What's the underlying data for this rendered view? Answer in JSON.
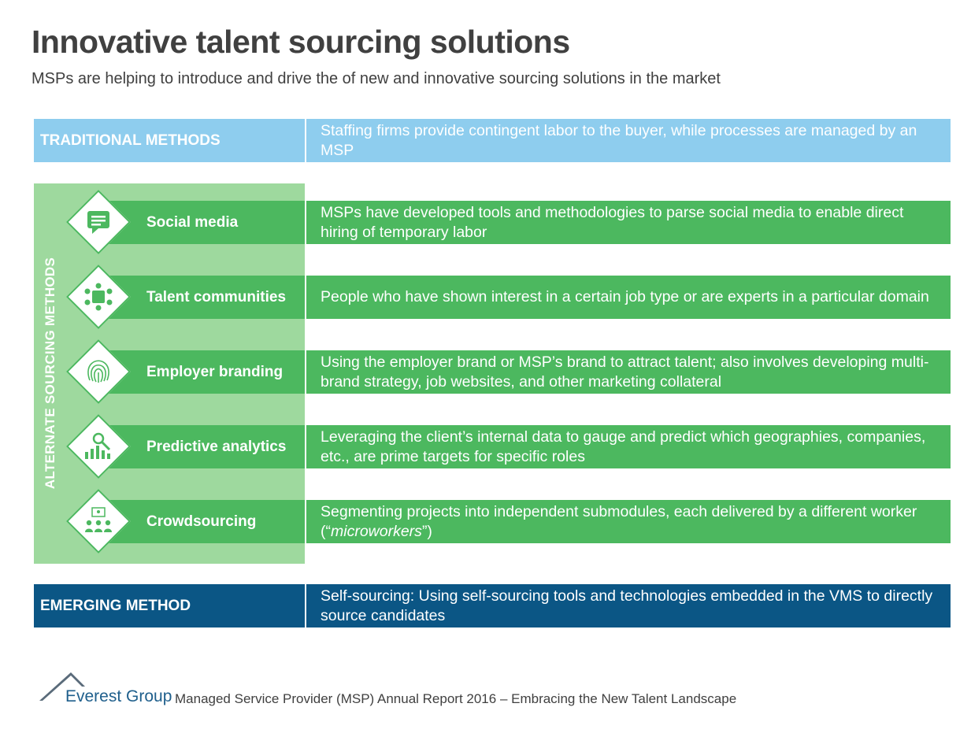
{
  "header": {
    "title": "Innovative talent sourcing solutions",
    "subtitle": "MSPs are helping to introduce and drive the of new and innovative sourcing solutions in the market"
  },
  "traditional": {
    "label": "TRADITIONAL METHODS",
    "description": "Staffing firms provide contingent labor to the buyer, while processes are managed by an MSP"
  },
  "alternate": {
    "group_label": "ALTERNATE SOURCING METHODS",
    "rows": [
      {
        "label": "Social media",
        "icon": "chat-bubble-icon",
        "description": "MSPs have developed tools and methodologies to parse social media to enable direct hiring of temporary labor"
      },
      {
        "label": "Talent communities",
        "icon": "community-icon",
        "description": "People who have shown interest in a certain job type or are experts in a particular domain"
      },
      {
        "label": "Employer branding",
        "icon": "fingerprint-icon",
        "description": "Using the employer brand or MSP’s brand to attract talent; also involves developing multi-brand strategy, job websites, and other marketing collateral"
      },
      {
        "label": "Predictive analytics",
        "icon": "analytics-magnifier-icon",
        "description": "Leveraging the client’s internal data to gauge and predict which geographies, companies, etc., are prime targets for specific roles"
      },
      {
        "label": "Crowdsourcing",
        "icon": "crowd-icon",
        "description_before": "Segmenting projects into independent submodules, each delivered by a different worker (“",
        "description_italic": "microworkers",
        "description_after": "”)"
      }
    ]
  },
  "emerging": {
    "label": "EMERGING METHOD",
    "description": "Self-sourcing: Using self-sourcing tools and technologies embedded in the VMS to directly source candidates"
  },
  "footer": {
    "logo_text": "Everest Group",
    "report": "Managed Service Provider (MSP) Annual Report 2016 – Embracing the New Talent Landscape"
  },
  "colors": {
    "traditional": "#8ecdee",
    "alternate_panel": "#9ed99e",
    "alternate_bar": "#4cb85f",
    "emerging": "#0b5685"
  }
}
